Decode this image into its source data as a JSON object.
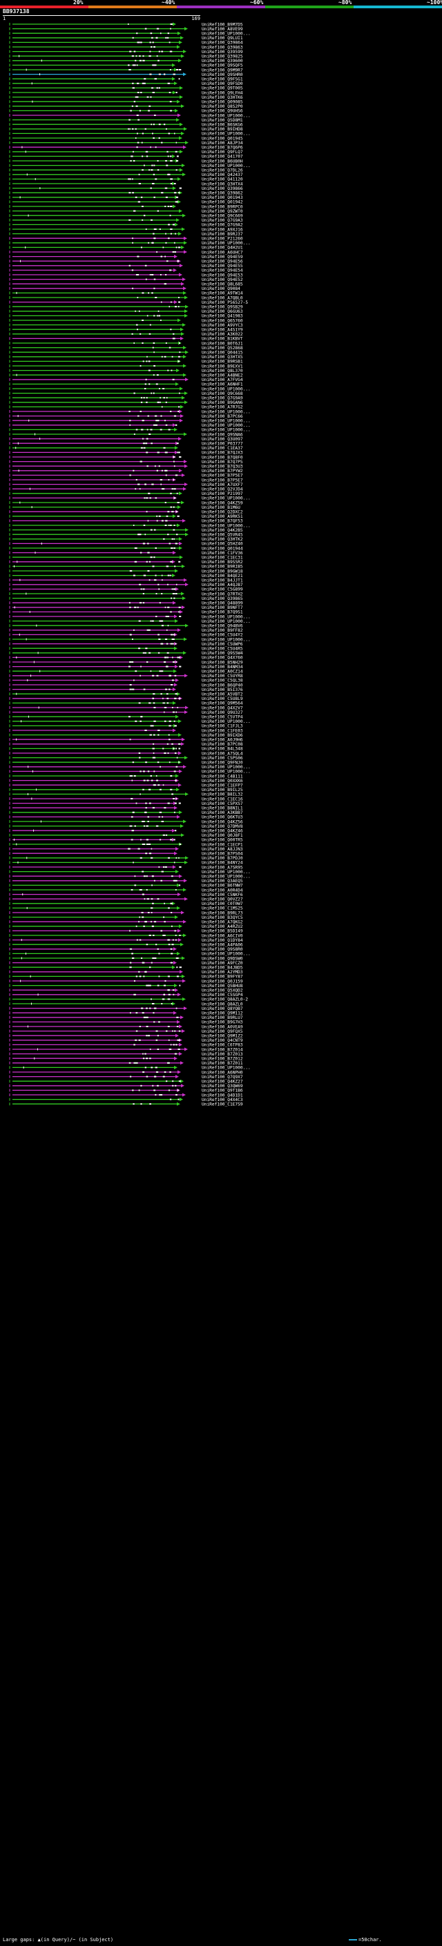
{
  "query_id": "BB937138",
  "ruler": {
    "start": "1",
    "end": "169"
  },
  "legend": [
    {
      "label": "20%",
      "color": "#e8202a"
    },
    {
      "label": "~40%",
      "color": "#e07a1a"
    },
    {
      "label": "~60%",
      "color": "#9b2fbf"
    },
    {
      "label": "~80%",
      "color": "#1fa31a"
    },
    {
      "label": "~100%",
      "color": "#15b7cf"
    }
  ],
  "colors": {
    "green": "#33cc22",
    "magenta": "#cc33cc",
    "cyan": "#2ab0e0",
    "gap": "#ffffff",
    "text": "#ffffff"
  },
  "footer": {
    "text": "Large gaps: ▲(in Query)/~ (in Subject)",
    "scale": "=50char."
  },
  "hits": [
    {
      "label": "UniRef100_B9M7D5",
      "c": "g"
    },
    {
      "label": "UniRef100_A8VE99",
      "c": "g"
    },
    {
      "label": "UniRef100_UP1000...",
      "c": "g"
    },
    {
      "label": "UniRef100_Q9LUI1",
      "c": "g"
    },
    {
      "label": "UniRef100_Q39864",
      "c": "g"
    },
    {
      "label": "UniRef100_Q39863",
      "c": "g"
    },
    {
      "label": "UniRef100_Q39599",
      "c": "g"
    },
    {
      "label": "UniRef100_Q39825",
      "c": "g"
    },
    {
      "label": "UniRef100_Q39600",
      "c": "g"
    },
    {
      "label": "UniRef100_Q9SQF5",
      "c": "g"
    },
    {
      "label": "UniRef100_Q9M9R7",
      "c": "g"
    },
    {
      "label": "UniRef100_Q9SHR0",
      "c": "c"
    },
    {
      "label": "UniRef100_Q9FSG1",
      "c": "g"
    },
    {
      "label": "UniRef100_Q9FSD0",
      "c": "g"
    },
    {
      "label": "UniRef100_Q9T005",
      "c": "g"
    },
    {
      "label": "UniRef100_Q9LFH4",
      "c": "g"
    },
    {
      "label": "UniRef100_Q3HTK6",
      "c": "g"
    },
    {
      "label": "UniRef100_Q09085",
      "c": "g"
    },
    {
      "label": "UniRef100_Q8S2P0",
      "c": "g"
    },
    {
      "label": "UniRef100_Q9UHS6",
      "c": "g"
    },
    {
      "label": "UniRef100_UP1000...",
      "c": "m"
    },
    {
      "label": "UniRef100_Q5D8M1",
      "c": "g"
    },
    {
      "label": "UniRef100_B6SKG6",
      "c": "g"
    },
    {
      "label": "UniRef100_B9IHD8",
      "c": "g"
    },
    {
      "label": "UniRef100_UP1000...",
      "c": "g"
    },
    {
      "label": "UniRef100_Q01945",
      "c": "g"
    },
    {
      "label": "UniRef100_A8JP34",
      "c": "g"
    },
    {
      "label": "UniRef100_B7Q6P6",
      "c": "m"
    },
    {
      "label": "UniRef100_Q9FLQ7",
      "c": "g"
    },
    {
      "label": "UniRef100_Q41707",
      "c": "g"
    },
    {
      "label": "UniRef100_B6UB0H",
      "c": "g"
    },
    {
      "label": "UniRef100_UP1000...",
      "c": "g"
    },
    {
      "label": "UniRef100_Q7DL26",
      "c": "g"
    },
    {
      "label": "UniRef100_Q42437",
      "c": "g"
    },
    {
      "label": "UniRef100_Q41120",
      "c": "g"
    },
    {
      "label": "UniRef100_Q3HTX4",
      "c": "g"
    },
    {
      "label": "UniRef100_Q39866",
      "c": "g"
    },
    {
      "label": "UniRef100_Q39862",
      "c": "g"
    },
    {
      "label": "UniRef100_Q01943",
      "c": "g"
    },
    {
      "label": "UniRef100_Q01942",
      "c": "g"
    },
    {
      "label": "UniRef100_B9RPC0",
      "c": "g"
    },
    {
      "label": "UniRef100_Q9ZWT0",
      "c": "g"
    },
    {
      "label": "UniRef100_Q9C669",
      "c": "g"
    },
    {
      "label": "UniRef100_Q7G9A3",
      "c": "g"
    },
    {
      "label": "UniRef100_Q7G9A2",
      "c": "g"
    },
    {
      "label": "UniRef100_A9XJ16",
      "c": "g"
    },
    {
      "label": "UniRef100_B9RJ37",
      "c": "g"
    },
    {
      "label": "UniRef100_P21260",
      "c": "m"
    },
    {
      "label": "UniRef100_UP1000...",
      "c": "g"
    },
    {
      "label": "UniRef100_Q4H2U1",
      "c": "g"
    },
    {
      "label": "UniRef100_A6UHC7",
      "c": "m"
    },
    {
      "label": "UniRef100_Q94E59",
      "c": "m"
    },
    {
      "label": "UniRef100_Q94E56",
      "c": "m"
    },
    {
      "label": "UniRef100_Q94E55",
      "c": "m"
    },
    {
      "label": "UniRef100_Q94E54",
      "c": "m"
    },
    {
      "label": "UniRef100_Q94E53",
      "c": "m"
    },
    {
      "label": "UniRef100_Q94E52",
      "c": "m"
    },
    {
      "label": "UniRef100_Q8L685",
      "c": "m"
    },
    {
      "label": "UniRef100_Q9084",
      "c": "m"
    },
    {
      "label": "UniRef100_A9TW14",
      "c": "g"
    },
    {
      "label": "UniRef100_A7QBL0",
      "c": "g"
    },
    {
      "label": "UniRef100_P56527-5",
      "c": "m"
    },
    {
      "label": "UniRef100_Q9SB29",
      "c": "g"
    },
    {
      "label": "UniRef100_Q6GU63",
      "c": "g"
    },
    {
      "label": "UniRef100_Q41983",
      "c": "g"
    },
    {
      "label": "UniRef100_Q65760",
      "c": "g"
    },
    {
      "label": "UniRef100_A9VYC3",
      "c": "g"
    },
    {
      "label": "UniRef100_A4S1Y9",
      "c": "g"
    },
    {
      "label": "UniRef100_A3K022",
      "c": "g"
    },
    {
      "label": "UniRef100_B1KBVT",
      "c": "m"
    },
    {
      "label": "UniRef100_B0T6J1",
      "c": "g"
    },
    {
      "label": "UniRef100_Q52868",
      "c": "g"
    },
    {
      "label": "UniRef100_Q04415",
      "c": "g"
    },
    {
      "label": "UniRef100_Q3HTX5",
      "c": "g"
    },
    {
      "label": "UniRef100_B9RSB1",
      "c": "g"
    },
    {
      "label": "UniRef100_B9EXV1",
      "c": "g"
    },
    {
      "label": "UniRef100_Q8L370",
      "c": "g"
    },
    {
      "label": "UniRef100_A4BNE2",
      "c": "g"
    },
    {
      "label": "UniRef100_A7FVG4",
      "c": "m"
    },
    {
      "label": "UniRef100_A6NHF1",
      "c": "g"
    },
    {
      "label": "UniRef100_UP1000...",
      "c": "g"
    },
    {
      "label": "UniRef100_Q9C668",
      "c": "g"
    },
    {
      "label": "UniRef100_Q7G9A9",
      "c": "g"
    },
    {
      "label": "UniRef100_B9GAN6",
      "c": "g"
    },
    {
      "label": "UniRef100_A7R7G2",
      "c": "g"
    },
    {
      "label": "UniRef100_UP1000...",
      "c": "m"
    },
    {
      "label": "UniRef100_B7PC66",
      "c": "m"
    },
    {
      "label": "UniRef100_UP1000...",
      "c": "m"
    },
    {
      "label": "UniRef100_UP1000...",
      "c": "m"
    },
    {
      "label": "UniRef100_UP1000...",
      "c": "g"
    },
    {
      "label": "UniRef100_Q9SNA6",
      "c": "g"
    },
    {
      "label": "UniRef100_Q3U097",
      "c": "m"
    },
    {
      "label": "UniRef100_P03777",
      "c": "m"
    },
    {
      "label": "UniRef100_C1EA37",
      "c": "g"
    },
    {
      "label": "UniRef100_B7QJX3",
      "c": "m"
    },
    {
      "label": "UniRef100_B7Q8F0",
      "c": "m"
    },
    {
      "label": "UniRef100_B7Q7P5",
      "c": "m"
    },
    {
      "label": "UniRef100_B7Q3U3",
      "c": "m"
    },
    {
      "label": "UniRef100_B7PYW2",
      "c": "m"
    },
    {
      "label": "UniRef100_B7P5E7",
      "c": "m"
    },
    {
      "label": "UniRef100_B7P5E7",
      "c": "m"
    },
    {
      "label": "UniRef100_A7UXF7",
      "c": "m"
    },
    {
      "label": "UniRef100_Q2VJD4",
      "c": "m"
    },
    {
      "label": "UniRef100_P21997",
      "c": "g"
    },
    {
      "label": "UniRef100_UP1000...",
      "c": "m"
    },
    {
      "label": "UniRef100_Q4KZ59",
      "c": "g"
    },
    {
      "label": "UniRef100_B1M6U",
      "c": "g"
    },
    {
      "label": "UniRef100_Q2DXC2",
      "c": "m"
    },
    {
      "label": "UniRef100_A9RK51",
      "c": "g"
    },
    {
      "label": "UniRef100_B7QF53",
      "c": "m"
    },
    {
      "label": "UniRef100_UP1000...",
      "c": "g"
    },
    {
      "label": "UniRef100_Q4K2B5",
      "c": "g"
    },
    {
      "label": "UniRef100_Q5VR45",
      "c": "g"
    },
    {
      "label": "UniRef100_Q3HTK2",
      "c": "g"
    },
    {
      "label": "UniRef100_Q5HZ40",
      "c": "m"
    },
    {
      "label": "UniRef100_Q01944",
      "c": "g"
    },
    {
      "label": "UniRef100_C1FV36",
      "c": "m"
    },
    {
      "label": "UniRef100_C1EC31",
      "c": "g"
    },
    {
      "label": "UniRef100_B9S5R2",
      "c": "m"
    },
    {
      "label": "UniRef100_B9RIB5",
      "c": "g"
    },
    {
      "label": "UniRef100_B9GW18",
      "c": "g"
    },
    {
      "label": "UniRef100_B4QE21",
      "c": "g"
    },
    {
      "label": "UniRef100_B4JJT1",
      "c": "m"
    },
    {
      "label": "UniRef100_A4QJB7",
      "c": "m"
    },
    {
      "label": "UniRef100_C5G899",
      "c": "m"
    },
    {
      "label": "UniRef100_Q7RTH2",
      "c": "g"
    },
    {
      "label": "UniRef100_Q39865",
      "c": "g"
    },
    {
      "label": "UniRef100_Q48899",
      "c": "m"
    },
    {
      "label": "UniRef100_B9NFT7",
      "c": "m"
    },
    {
      "label": "UniRef100_B7Q9S1",
      "c": "m"
    },
    {
      "label": "UniRef100_UP1000...",
      "c": "m"
    },
    {
      "label": "UniRef100_UP1000...",
      "c": "g"
    },
    {
      "label": "UniRef100_Q94BV6",
      "c": "g"
    },
    {
      "label": "UniRef100_B9FF82",
      "c": "m"
    },
    {
      "label": "UniRef100_C5U4Y2",
      "c": "m"
    },
    {
      "label": "UniRef100_UP1000...",
      "c": "g"
    },
    {
      "label": "UniRef100_C5UWP6",
      "c": "m"
    },
    {
      "label": "UniRef100_C5U4R5",
      "c": "g"
    },
    {
      "label": "UniRef100_Q9S5W4",
      "c": "g"
    },
    {
      "label": "UniRef100_Q4X760",
      "c": "m"
    },
    {
      "label": "UniRef100_B5NH29",
      "c": "m"
    },
    {
      "label": "UniRef100_B4NM34",
      "c": "m"
    },
    {
      "label": "UniRef100_A0CZ14",
      "c": "g"
    },
    {
      "label": "UniRef100_C5UYR8",
      "c": "m"
    },
    {
      "label": "UniRef100_C5QL38",
      "c": "m"
    },
    {
      "label": "UniRef100_B6QP40",
      "c": "m"
    },
    {
      "label": "UniRef100_B5I376",
      "c": "m"
    },
    {
      "label": "UniRef100_A5VBT2",
      "c": "g"
    },
    {
      "label": "UniRef100_C5U8L9",
      "c": "m"
    },
    {
      "label": "UniRef100_Q9M564",
      "c": "g"
    },
    {
      "label": "UniRef100_Q4X2V7",
      "c": "m"
    },
    {
      "label": "UniRef100_Q9U327",
      "c": "m"
    },
    {
      "label": "UniRef100_C5VTP4",
      "c": "g"
    },
    {
      "label": "UniRef100_UP1000...",
      "c": "g"
    },
    {
      "label": "UniRef100_C1FJL3",
      "c": "g"
    },
    {
      "label": "UniRef100_C1FE03",
      "c": "m"
    },
    {
      "label": "UniRef100_B9IXD6",
      "c": "g"
    },
    {
      "label": "UniRef100_A0J9H6",
      "c": "m"
    },
    {
      "label": "UniRef100_B7PC08",
      "c": "m"
    },
    {
      "label": "UniRef100_B4L348",
      "c": "g"
    },
    {
      "label": "UniRef100_A7SQL4",
      "c": "m"
    },
    {
      "label": "UniRef100_C5PS06",
      "c": "g"
    },
    {
      "label": "UniRef100_Q9FNJ0",
      "c": "g"
    },
    {
      "label": "UniRef100_UP1000...",
      "c": "m"
    },
    {
      "label": "UniRef100_UP1000...",
      "c": "m"
    },
    {
      "label": "UniRef100_C4B111",
      "c": "g"
    },
    {
      "label": "UniRef100_Q0XXK6",
      "c": "m"
    },
    {
      "label": "UniRef100_C1EFP7",
      "c": "m"
    },
    {
      "label": "UniRef100_B9IL25",
      "c": "g"
    },
    {
      "label": "UniRef100_B8IL32",
      "c": "g"
    },
    {
      "label": "UniRef100_C1EC16",
      "c": "m"
    },
    {
      "label": "UniRef100_C5PXS7",
      "c": "m"
    },
    {
      "label": "UniRef100_B8NIL1",
      "c": "m"
    },
    {
      "label": "UniRef100_A3KBB7",
      "c": "g"
    },
    {
      "label": "UniRef100_Q6KTU3",
      "c": "m"
    },
    {
      "label": "UniRef100_Q4KZ56",
      "c": "g"
    },
    {
      "label": "UniRef100_Q7DMV8",
      "c": "g"
    },
    {
      "label": "UniRef100_Q4KZ46",
      "c": "m"
    },
    {
      "label": "UniRef100_Q0J8F1",
      "c": "g"
    },
    {
      "label": "UniRef100_Q00TR5",
      "c": "m"
    },
    {
      "label": "UniRef100_C1ECP1",
      "c": "g"
    },
    {
      "label": "UniRef100_A8JJN3",
      "c": "m"
    },
    {
      "label": "UniRef100_B7PS04",
      "c": "m"
    },
    {
      "label": "UniRef100_B7PDJ0",
      "c": "g"
    },
    {
      "label": "UniRef100_B4NY24",
      "c": "g"
    },
    {
      "label": "UniRef100_A7SR95",
      "c": "m"
    },
    {
      "label": "UniRef100_UP1000...",
      "c": "g"
    },
    {
      "label": "UniRef100_UP1000...",
      "c": "m"
    },
    {
      "label": "UniRef100_Q3AEQ5",
      "c": "m"
    },
    {
      "label": "UniRef100_B6TNW7",
      "c": "g"
    },
    {
      "label": "UniRef100_A0R4D4",
      "c": "g"
    },
    {
      "label": "UniRef100_C5NKF6",
      "c": "m"
    },
    {
      "label": "UniRef100_Q0VZ27",
      "c": "m"
    },
    {
      "label": "UniRef100_C0T0W7",
      "c": "g"
    },
    {
      "label": "UniRef100_C1MS25",
      "c": "g"
    },
    {
      "label": "UniRef100_B9RL73",
      "c": "m"
    },
    {
      "label": "UniRef100_B3QYC5",
      "c": "g"
    },
    {
      "label": "UniRef100_A7QKG2",
      "c": "m"
    },
    {
      "label": "UniRef100_A4RZU2",
      "c": "g"
    },
    {
      "label": "UniRef100_B5DI49",
      "c": "m"
    },
    {
      "label": "UniRef100_A6CIV0",
      "c": "g"
    },
    {
      "label": "UniRef100_Q1DY84",
      "c": "m"
    },
    {
      "label": "UniRef100_A4PA06",
      "c": "g"
    },
    {
      "label": "UniRef100_Q9S8R0",
      "c": "m"
    },
    {
      "label": "UniRef100_UP1000...",
      "c": "g"
    },
    {
      "label": "UniRef100_Q9DSW0",
      "c": "g"
    },
    {
      "label": "UniRef100_A9FCZ0",
      "c": "m"
    },
    {
      "label": "UniRef100_B4JBD5",
      "c": "g"
    },
    {
      "label": "UniRef100_A2YMD3",
      "c": "m"
    },
    {
      "label": "UniRef100_B9FY87",
      "c": "g"
    },
    {
      "label": "UniRef100_Q0J159",
      "c": "m"
    },
    {
      "label": "UniRef100_Q5BHU8",
      "c": "g"
    },
    {
      "label": "UniRef100_Q5XQD2",
      "c": "m"
    },
    {
      "label": "UniRef100_C5SGP4",
      "c": "m"
    },
    {
      "label": "UniRef100_Q8AZL0-2",
      "c": "g"
    },
    {
      "label": "UniRef100_Q8AZL0",
      "c": "g"
    },
    {
      "label": "UniRef100_Q8YQB7",
      "c": "m"
    },
    {
      "label": "UniRef100_Q9M112",
      "c": "m"
    },
    {
      "label": "UniRef100_B9RLU7",
      "c": "m"
    },
    {
      "label": "UniRef100_B9G7H3",
      "c": "m"
    },
    {
      "label": "UniRef100_A0VEA9",
      "c": "m"
    },
    {
      "label": "UniRef100_Q9FQX5",
      "c": "m"
    },
    {
      "label": "UniRef100_Q9M1Z2",
      "c": "m"
    },
    {
      "label": "UniRef100_Q4CNT9",
      "c": "m"
    },
    {
      "label": "UniRef100_C6TP83",
      "c": "m"
    },
    {
      "label": "UniRef100_B7Z014",
      "c": "m"
    },
    {
      "label": "UniRef100_B7Z013",
      "c": "m"
    },
    {
      "label": "UniRef100_B7Z012",
      "c": "m"
    },
    {
      "label": "UniRef100_B7Z011",
      "c": "m"
    },
    {
      "label": "UniRef100_UP1000...",
      "c": "g"
    },
    {
      "label": "UniRef100_A6NPH0",
      "c": "m"
    },
    {
      "label": "UniRef100_Q7Q9X7",
      "c": "m"
    },
    {
      "label": "UniRef100_Q4KZ27",
      "c": "g"
    },
    {
      "label": "UniRef100_Q3QW69",
      "c": "m"
    },
    {
      "label": "UniRef100_Q9T1B6",
      "c": "m"
    },
    {
      "label": "UniRef100_Q4D1D1",
      "c": "m"
    },
    {
      "label": "UniRef100_Q4X4C3",
      "c": "g"
    },
    {
      "label": "UniRef100_C1E7S9",
      "c": "g"
    }
  ]
}
